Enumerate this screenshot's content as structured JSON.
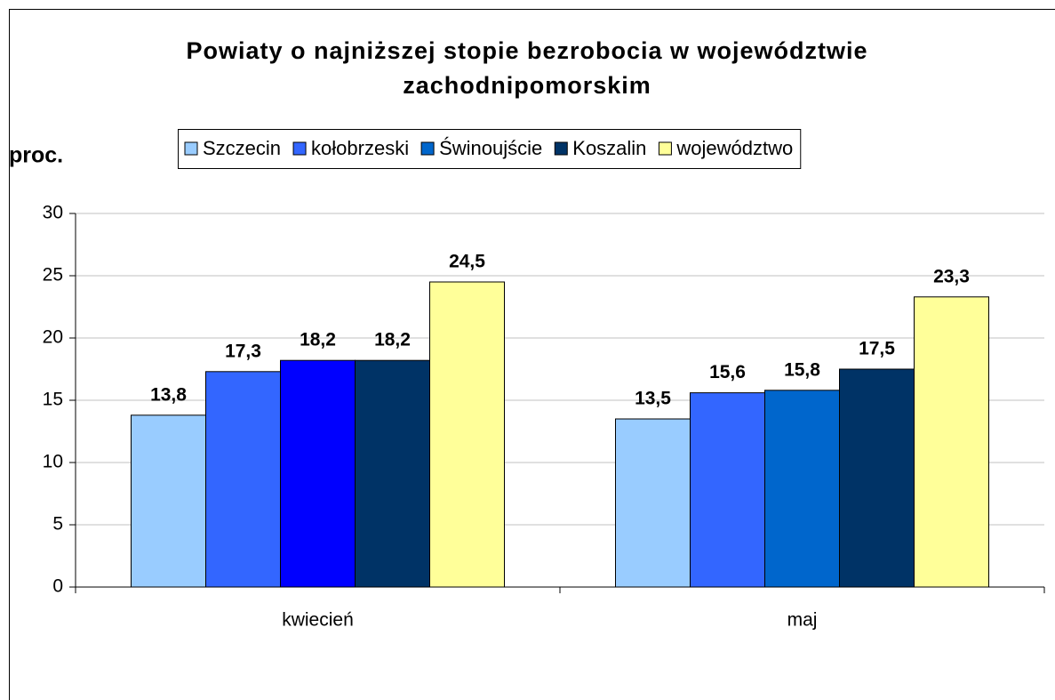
{
  "chart_data": {
    "type": "bar",
    "title": "Powiaty o najniższej stopie bezrobocia w województwie zachodnipomorskim",
    "y_label": "proc.",
    "categories": [
      "kwiecień",
      "maj"
    ],
    "series": [
      {
        "name": "Szczecin",
        "color": "#99ccff",
        "values": [
          13.8,
          13.5
        ],
        "value_labels": [
          "13,8",
          "13,5"
        ]
      },
      {
        "name": "kołobrzeski",
        "color": "#3366ff",
        "values": [
          17.3,
          15.6
        ],
        "value_labels": [
          "17,3",
          "15,6"
        ]
      },
      {
        "name": "Świnoujście",
        "color": "#0066cc",
        "colors": [
          "#0000ff",
          "#0066cc"
        ],
        "values": [
          18.2,
          15.8
        ],
        "value_labels": [
          "18,2",
          "15,8"
        ]
      },
      {
        "name": "Koszalin",
        "color": "#003366",
        "values": [
          18.2,
          17.5
        ],
        "value_labels": [
          "18,2",
          "17,5"
        ]
      },
      {
        "name": "województwo",
        "color": "#ffff99",
        "values": [
          24.5,
          23.3
        ],
        "value_labels": [
          "24,5",
          "23,3"
        ]
      }
    ],
    "ylim": [
      0,
      30
    ],
    "yticks": [
      0,
      5,
      10,
      15,
      20,
      25,
      30
    ],
    "grid": true,
    "legend": "top"
  }
}
